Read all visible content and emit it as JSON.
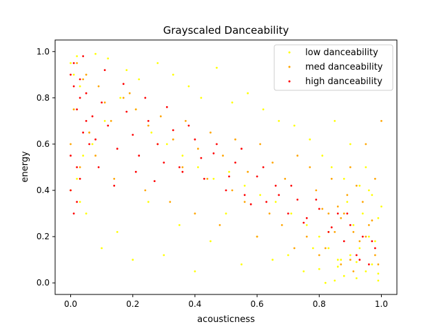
{
  "chart_data": {
    "type": "scatter",
    "title": "Grayscaled Danceability",
    "xlabel": "acousticness",
    "ylabel": "energy",
    "xlim": [
      -0.05,
      1.05
    ],
    "ylim": [
      -0.05,
      1.05
    ],
    "xticks": [
      0.0,
      0.2,
      0.4,
      0.6,
      0.8,
      1.0
    ],
    "yticks": [
      0.0,
      0.2,
      0.4,
      0.6,
      0.8,
      1.0
    ],
    "xtick_labels": [
      "0.0",
      "0.2",
      "0.4",
      "0.6",
      "0.8",
      "1.0"
    ],
    "ytick_labels": [
      "0.0",
      "0.2",
      "0.4",
      "0.6",
      "0.8",
      "1.0"
    ],
    "legend_position": "top-right",
    "grid": false,
    "series": [
      {
        "name": "low danceability",
        "color": "#ffff00",
        "x": [
          0.92,
          0.95,
          0.88,
          0.97,
          0.85,
          0.9,
          0.99,
          0.93,
          0.8,
          0.96,
          0.87,
          0.91,
          0.98,
          0.94,
          0.83,
          0.89,
          0.96,
          0.99,
          0.86,
          0.92,
          0.75,
          0.7,
          0.65,
          0.82,
          0.78,
          0.6,
          0.55,
          0.5,
          0.45,
          0.4,
          0.35,
          0.3,
          0.25,
          0.2,
          0.15,
          0.1,
          0.05,
          0.02,
          0.0,
          0.01,
          0.03,
          0.08,
          0.12,
          0.18,
          0.22,
          0.28,
          0.33,
          0.38,
          0.42,
          0.47,
          0.52,
          0.57,
          0.62,
          0.67,
          0.72,
          0.77,
          0.81,
          0.84,
          0.88,
          0.93,
          0.97,
          1.0,
          0.99,
          0.95,
          0.9,
          0.85,
          0.02,
          0.04,
          0.06,
          0.01,
          0.0,
          0.03,
          0.07,
          0.11,
          0.16,
          0.21,
          0.26,
          0.31,
          0.36,
          0.41,
          0.46,
          0.51,
          0.56,
          0.61,
          0.66,
          0.71,
          0.76,
          0.8,
          0.83,
          0.86
        ],
        "y": [
          0.02,
          0.05,
          0.03,
          0.08,
          0.01,
          0.12,
          0.04,
          0.15,
          0.06,
          0.2,
          0.1,
          0.25,
          0.18,
          0.3,
          0.22,
          0.35,
          0.4,
          0.01,
          0.07,
          0.09,
          0.05,
          0.12,
          0.1,
          0.0,
          0.15,
          0.2,
          0.08,
          0.3,
          0.18,
          0.05,
          0.25,
          0.12,
          0.35,
          0.1,
          0.22,
          0.15,
          0.3,
          0.98,
          0.95,
          0.9,
          0.85,
          0.99,
          0.97,
          0.92,
          0.88,
          0.95,
          0.9,
          0.85,
          0.8,
          0.93,
          0.78,
          0.82,
          0.75,
          0.7,
          0.68,
          0.62,
          0.55,
          0.5,
          0.45,
          0.42,
          0.38,
          0.33,
          0.28,
          0.5,
          0.6,
          0.7,
          0.45,
          0.55,
          0.65,
          0.75,
          0.4,
          0.35,
          0.6,
          0.7,
          0.8,
          0.75,
          0.65,
          0.6,
          0.55,
          0.5,
          0.45,
          0.48,
          0.42,
          0.38,
          0.35,
          0.3,
          0.25,
          0.2,
          0.15,
          0.1
        ]
      },
      {
        "name": "med danceability",
        "color": "#ffa500",
        "x": [
          0.9,
          0.93,
          0.96,
          0.88,
          0.85,
          0.91,
          0.98,
          0.94,
          0.87,
          0.82,
          0.79,
          0.95,
          0.99,
          0.92,
          0.86,
          0.89,
          0.97,
          0.84,
          0.81,
          0.9,
          0.77,
          0.73,
          0.69,
          0.65,
          0.61,
          0.57,
          0.53,
          0.49,
          0.45,
          0.41,
          0.37,
          0.33,
          0.29,
          0.25,
          0.21,
          0.17,
          0.13,
          0.09,
          0.05,
          0.02,
          0.0,
          0.01,
          0.03,
          0.06,
          0.04,
          0.08,
          0.11,
          0.14,
          0.19,
          0.24,
          0.28,
          0.32,
          0.36,
          0.4,
          0.44,
          0.48,
          0.52,
          0.56,
          0.6,
          0.64,
          0.68,
          0.72,
          0.76,
          0.8,
          0.83,
          0.87,
          0.91,
          0.95,
          0.98,
          1.0
        ],
        "y": [
          0.1,
          0.18,
          0.25,
          0.3,
          0.22,
          0.05,
          0.12,
          0.35,
          0.28,
          0.15,
          0.4,
          0.2,
          0.08,
          0.42,
          0.33,
          0.38,
          0.27,
          0.45,
          0.32,
          0.5,
          0.5,
          0.55,
          0.45,
          0.52,
          0.6,
          0.48,
          0.62,
          0.55,
          0.65,
          0.58,
          0.7,
          0.62,
          0.72,
          0.68,
          0.75,
          0.8,
          0.7,
          0.85,
          0.9,
          0.95,
          0.6,
          0.75,
          0.5,
          0.65,
          0.88,
          0.55,
          0.78,
          0.45,
          0.82,
          0.4,
          0.6,
          0.35,
          0.5,
          0.3,
          0.45,
          0.25,
          0.4,
          0.35,
          0.2,
          0.3,
          0.25,
          0.15,
          0.2,
          0.12,
          0.3,
          0.08,
          0.22,
          0.6,
          0.45,
          0.7
        ]
      },
      {
        "name": "high danceability",
        "color": "#ff0000",
        "x": [
          0.0,
          0.01,
          0.02,
          0.03,
          0.04,
          0.05,
          0.06,
          0.0,
          0.01,
          0.02,
          0.03,
          0.05,
          0.07,
          0.08,
          0.1,
          0.12,
          0.15,
          0.18,
          0.2,
          0.22,
          0.25,
          0.28,
          0.3,
          0.33,
          0.36,
          0.4,
          0.43,
          0.46,
          0.5,
          0.53,
          0.56,
          0.6,
          0.63,
          0.66,
          0.7,
          0.73,
          0.76,
          0.8,
          0.83,
          0.86,
          0.88,
          0.9,
          0.92,
          0.94,
          0.96,
          0.98,
          0.0,
          0.02,
          0.04,
          0.01,
          0.03,
          0.09,
          0.11,
          0.14,
          0.17,
          0.21,
          0.24,
          0.27,
          0.31,
          0.35,
          0.38,
          0.42,
          0.47,
          0.51,
          0.55,
          0.58,
          0.62,
          0.67,
          0.71,
          0.75,
          0.79,
          0.84,
          0.89,
          0.93,
          0.97
        ],
        "y": [
          0.9,
          0.85,
          0.75,
          0.8,
          0.65,
          0.7,
          0.6,
          0.55,
          0.95,
          0.5,
          0.45,
          0.82,
          0.72,
          0.62,
          0.78,
          0.68,
          0.58,
          0.74,
          0.64,
          0.55,
          0.7,
          0.6,
          0.52,
          0.66,
          0.48,
          0.62,
          0.45,
          0.56,
          0.4,
          0.52,
          0.38,
          0.46,
          0.35,
          0.42,
          0.3,
          0.36,
          0.28,
          0.32,
          0.22,
          0.3,
          0.18,
          0.25,
          0.12,
          0.2,
          0.08,
          0.15,
          0.4,
          0.35,
          0.98,
          0.3,
          0.88,
          0.5,
          0.92,
          0.42,
          0.86,
          0.48,
          0.8,
          0.44,
          0.76,
          0.5,
          0.68,
          0.54,
          0.6,
          0.46,
          0.58,
          0.34,
          0.5,
          0.38,
          0.42,
          0.26,
          0.36,
          0.24,
          0.3,
          0.1,
          0.18
        ]
      }
    ]
  }
}
